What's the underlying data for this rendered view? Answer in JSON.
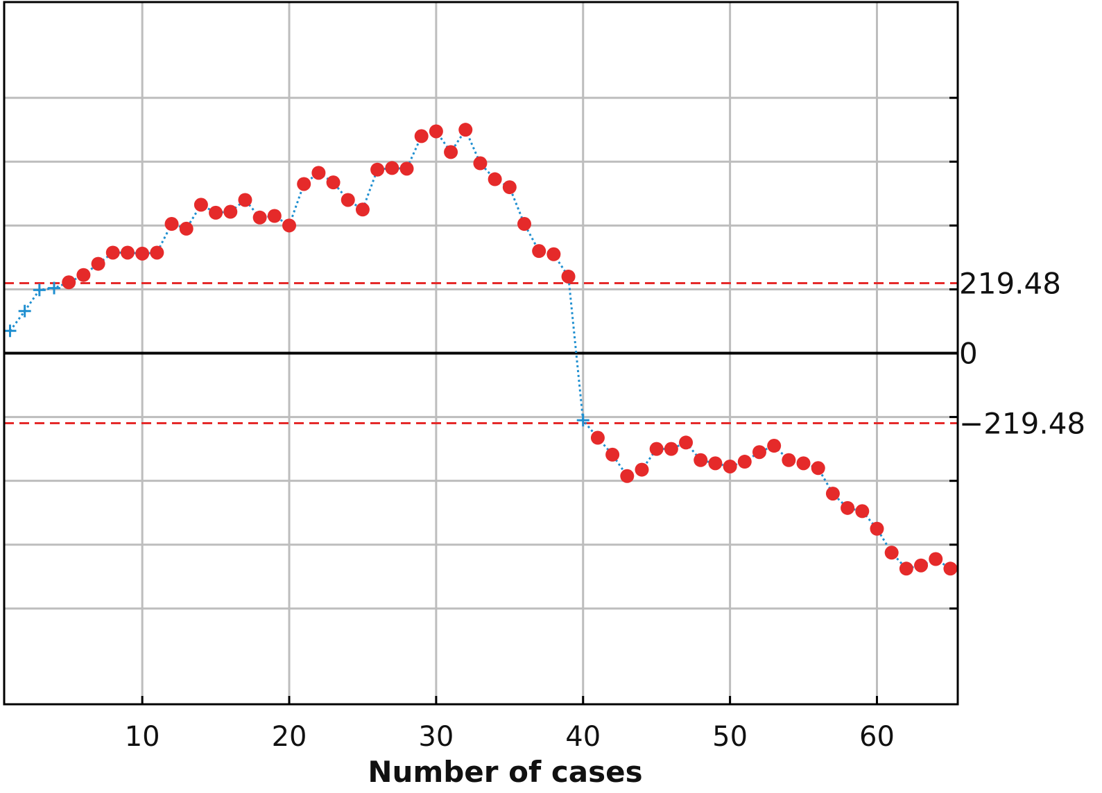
{
  "chart_data": {
    "type": "scatter",
    "title": "",
    "xlabel": "Number of cases",
    "ylabel": "",
    "xlim": [
      0.6,
      65.5
    ],
    "ylim": [
      -1100,
      1100
    ],
    "x_ticks": [
      10,
      20,
      30,
      40,
      50,
      60
    ],
    "x_tick_labels": [
      "10",
      "20",
      "30",
      "40",
      "50",
      "60"
    ],
    "y_ticks": [
      -800,
      -600,
      -400,
      -200,
      0,
      200,
      400,
      600,
      800
    ],
    "grid": true,
    "reference_lines": [
      {
        "value": 219.48,
        "label": "219.48",
        "color": "#e52a2a",
        "style": "dashed"
      },
      {
        "value": 0,
        "label": "0",
        "color": "#000000",
        "style": "solid"
      },
      {
        "value": -219.48,
        "label": "−219.48",
        "color": "#e52a2a",
        "style": "dashed"
      }
    ],
    "colors": {
      "connector": "#1f8fd0",
      "within_limit_marker": "#1f8fd0",
      "outside_limit_marker": "#e52a2a",
      "grid": "#bdbdbd"
    },
    "x": [
      1,
      2,
      3,
      4,
      5,
      6,
      7,
      8,
      9,
      10,
      11,
      12,
      13,
      14,
      15,
      16,
      17,
      18,
      19,
      20,
      21,
      22,
      23,
      24,
      25,
      26,
      27,
      28,
      29,
      30,
      31,
      32,
      33,
      34,
      35,
      36,
      37,
      38,
      39,
      40,
      41,
      42,
      43,
      44,
      45,
      46,
      47,
      48,
      49,
      50,
      51,
      52,
      53,
      54,
      55,
      56,
      57,
      58,
      59,
      60,
      61,
      62,
      63,
      64,
      65
    ],
    "values": [
      70,
      132,
      198,
      204,
      222,
      245,
      280,
      315,
      315,
      312,
      315,
      405,
      390,
      465,
      440,
      443,
      480,
      425,
      430,
      400,
      530,
      565,
      535,
      480,
      450,
      575,
      580,
      578,
      680,
      695,
      630,
      700,
      595,
      545,
      520,
      405,
      320,
      310,
      240,
      -210,
      -265,
      -318,
      -385,
      -365,
      -300,
      -300,
      -280,
      -335,
      -345,
      -355,
      -340,
      -310,
      -290,
      -335,
      -345,
      -360,
      -440,
      -485,
      -495,
      -550,
      -625,
      -675,
      -665,
      -645,
      -675
    ]
  }
}
